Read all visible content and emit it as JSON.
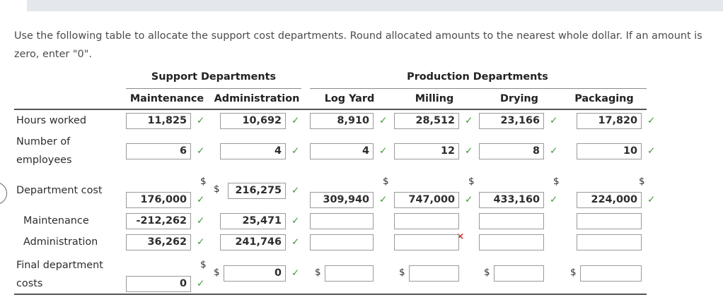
{
  "instructions": "Use the following table to allocate the support cost departments. Round allocated amounts to the nearest whole dollar. If an amount is zero, enter \"0\".",
  "group_headers": {
    "support": "Support Departments",
    "production": "Production Departments"
  },
  "columns": [
    "Maintenance",
    "Administration",
    "Log Yard",
    "Milling",
    "Drying",
    "Packaging"
  ],
  "row_labels": {
    "hours_worked": "Hours worked",
    "number_of_employees": "Number of employees",
    "department_cost": "Department cost",
    "maintenance": "Maintenance",
    "administration": "Administration",
    "final_department_costs": "Final department costs"
  },
  "currency_symbol": "$",
  "marks": {
    "check": "✓",
    "cross": "×"
  },
  "rows": {
    "hours_worked": [
      "11,825",
      "10,692",
      "8,910",
      "28,512",
      "23,166",
      "17,820"
    ],
    "hours_worked_status": [
      "check",
      "check",
      "check",
      "check",
      "check",
      "check"
    ],
    "number_of_employees": [
      "6",
      "4",
      "4",
      "12",
      "8",
      "10"
    ],
    "number_of_employees_status": [
      "check",
      "check",
      "check",
      "check",
      "check",
      "check"
    ],
    "department_cost": [
      "176,000",
      "216,275",
      "309,940",
      "747,000",
      "433,160",
      "224,000"
    ],
    "department_cost_status": [
      "check",
      "check",
      "check",
      "check",
      "check",
      "check"
    ],
    "maintenance": [
      "-212,262",
      "25,471",
      "",
      "",
      "",
      ""
    ],
    "maintenance_status": [
      "check",
      "check",
      "",
      "cross",
      "",
      ""
    ],
    "administration": [
      "36,262",
      "241,746",
      "",
      "",
      "",
      ""
    ],
    "administration_status": [
      "check",
      "check",
      "",
      "",
      "",
      ""
    ],
    "final_department_costs": [
      "0",
      "0",
      "",
      "",
      "",
      ""
    ],
    "final_department_costs_status": [
      "check",
      "check",
      "",
      "",
      "",
      ""
    ]
  },
  "colors": {
    "check": "#3f9a36",
    "cross": "#d0302b"
  }
}
